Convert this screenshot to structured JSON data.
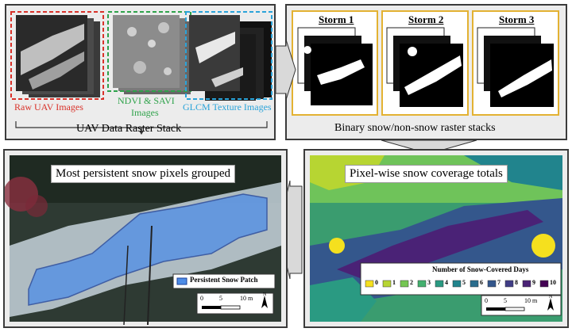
{
  "top_left": {
    "groups": [
      {
        "label": "Raw UAV Images",
        "color": "#d9322a"
      },
      {
        "label_line1": "NDVI & SAVI",
        "label_line2": "Images",
        "color": "#2ea24a"
      },
      {
        "label": "GLCM Texture Images",
        "color": "#2aa3d9"
      }
    ],
    "stack_caption": "UAV Data Raster Stack"
  },
  "top_right": {
    "storms": [
      "Storm 1",
      "Storm 2",
      "Storm 3"
    ],
    "caption": "Binary snow/non-snow raster stacks",
    "frame_color": "#e3b232"
  },
  "bottom_left": {
    "title": "Most persistent snow pixels grouped",
    "legend_label": "Persistent Snow Patch",
    "scale_ticks": [
      "0",
      "5",
      "10 m"
    ],
    "north": "N"
  },
  "bottom_right": {
    "title": "Pixel-wise snow coverage totals",
    "legend_title": "Number of Snow-Covered Days",
    "legend_items": [
      {
        "label": "0",
        "color": "#f5e01e"
      },
      {
        "label": "1",
        "color": "#b7d532"
      },
      {
        "label": "2",
        "color": "#74c653"
      },
      {
        "label": "3",
        "color": "#43b06e"
      },
      {
        "label": "4",
        "color": "#2a9a82"
      },
      {
        "label": "5",
        "color": "#21848d"
      },
      {
        "label": "6",
        "color": "#2a6d8e"
      },
      {
        "label": "7",
        "color": "#34578c"
      },
      {
        "label": "8",
        "color": "#403d86"
      },
      {
        "label": "9",
        "color": "#4a2276"
      },
      {
        "label": "10",
        "color": "#440154"
      }
    ],
    "scale_ticks": [
      "0",
      "5",
      "10 m"
    ],
    "north": "N"
  }
}
